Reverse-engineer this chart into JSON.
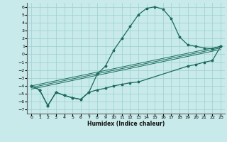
{
  "xlabel": "Humidex (Indice chaleur)",
  "bg_color": "#c8eaea",
  "grid_color": "#9ecece",
  "line_color": "#1a6b5a",
  "xlim": [
    -0.5,
    23.5
  ],
  "ylim": [
    -7.5,
    6.5
  ],
  "xticks": [
    0,
    1,
    2,
    3,
    4,
    5,
    6,
    7,
    8,
    9,
    10,
    11,
    12,
    13,
    14,
    15,
    16,
    17,
    18,
    19,
    20,
    21,
    22,
    23
  ],
  "yticks": [
    -7,
    -6,
    -5,
    -4,
    -3,
    -2,
    -1,
    0,
    1,
    2,
    3,
    4,
    5,
    6
  ],
  "line1_x": [
    0,
    1,
    2,
    3,
    4,
    5,
    6,
    7,
    8,
    9,
    10,
    11,
    12,
    13,
    14,
    15,
    16,
    17,
    18,
    19,
    20,
    21,
    22,
    23
  ],
  "line1_y": [
    -4.0,
    -4.5,
    -6.5,
    -4.8,
    -5.2,
    -5.5,
    -5.7,
    -4.8,
    -2.5,
    -1.5,
    0.5,
    2.0,
    3.5,
    5.0,
    5.8,
    6.0,
    5.7,
    4.5,
    2.2,
    1.2,
    1.0,
    0.8,
    0.7,
    1.0
  ],
  "line2_x": [
    0,
    1,
    2,
    3,
    4,
    5,
    6,
    7,
    8,
    9,
    10,
    11,
    12,
    13,
    19,
    20,
    21,
    22,
    23
  ],
  "line2_y": [
    -4.0,
    -4.5,
    -6.5,
    -4.8,
    -5.2,
    -5.5,
    -5.7,
    -4.8,
    -4.5,
    -4.3,
    -4.0,
    -3.8,
    -3.6,
    -3.5,
    -1.5,
    -1.3,
    -1.0,
    -0.8,
    1.0
  ],
  "line3_x": [
    0,
    23
  ],
  "line3_y": [
    -4.0,
    1.0
  ],
  "line4_x": [
    0,
    23
  ],
  "line4_y": [
    -4.2,
    0.8
  ],
  "line5_x": [
    0,
    23
  ],
  "line5_y": [
    -4.4,
    0.6
  ]
}
